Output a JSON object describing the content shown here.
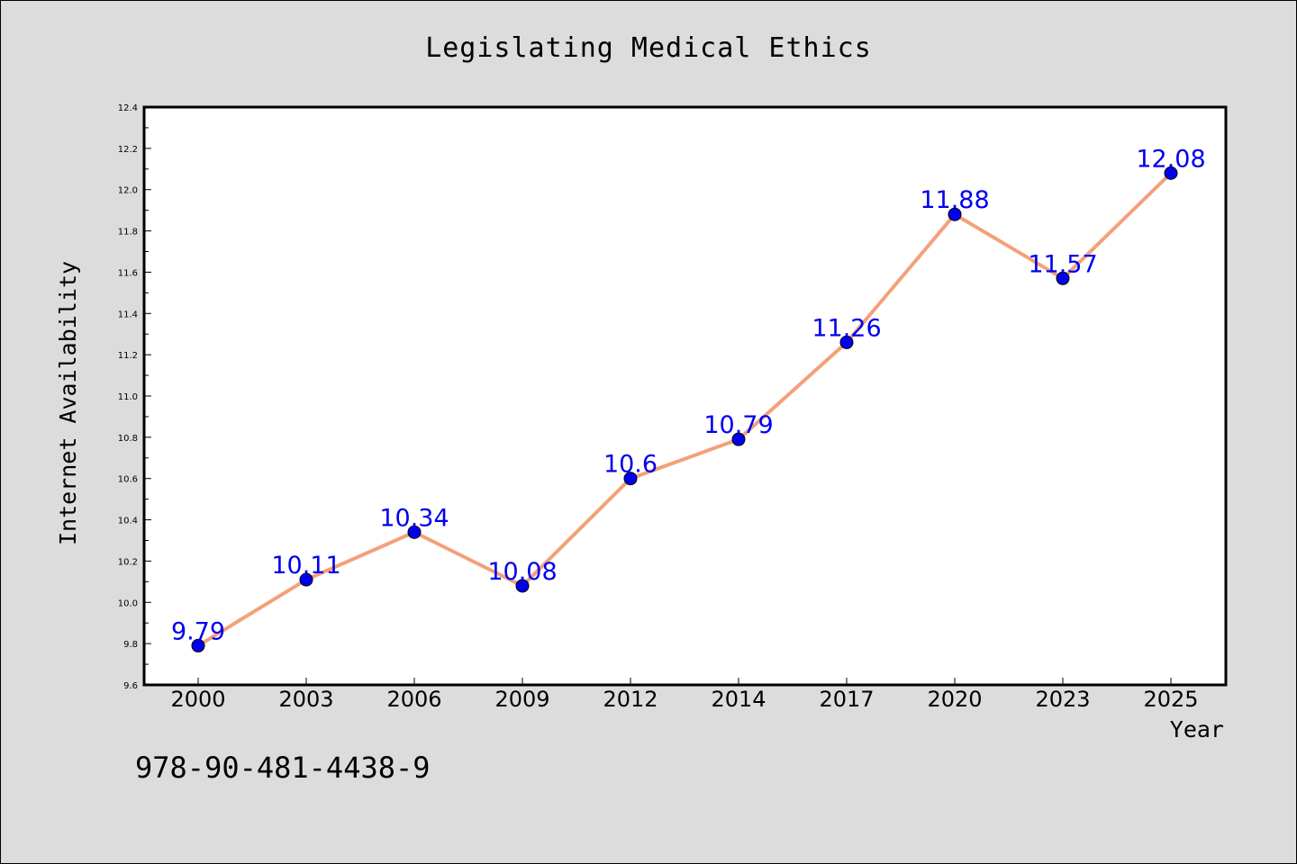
{
  "chart_data": {
    "type": "line",
    "title": "Legislating Medical Ethics",
    "xlabel": "Year",
    "ylabel": "Internet Availability",
    "categories": [
      "2000",
      "2003",
      "2006",
      "2009",
      "2012",
      "2014",
      "2017",
      "2020",
      "2023",
      "2025"
    ],
    "values": [
      9.79,
      10.11,
      10.34,
      10.08,
      10.6,
      10.79,
      11.26,
      11.88,
      11.57,
      12.08
    ],
    "data_labels": [
      "9.79",
      "10.11",
      "10.34",
      "10.08",
      "10.6",
      "10.79",
      "11.26",
      "11.88",
      "11.57",
      "12.08"
    ],
    "ylim": [
      9.6,
      12.4
    ],
    "yticks": [
      "9.6",
      "9.8",
      "10.0",
      "10.2",
      "10.4",
      "10.6",
      "10.8",
      "11.0",
      "11.2",
      "11.4",
      "11.6",
      "11.8",
      "12.0",
      "12.2",
      "12.4"
    ],
    "grid": false,
    "line_color": "#f4a07a",
    "marker_color": "#0000ee",
    "label_color": "#0000ee"
  },
  "footer": {
    "isbn": "978-90-481-4438-9"
  }
}
